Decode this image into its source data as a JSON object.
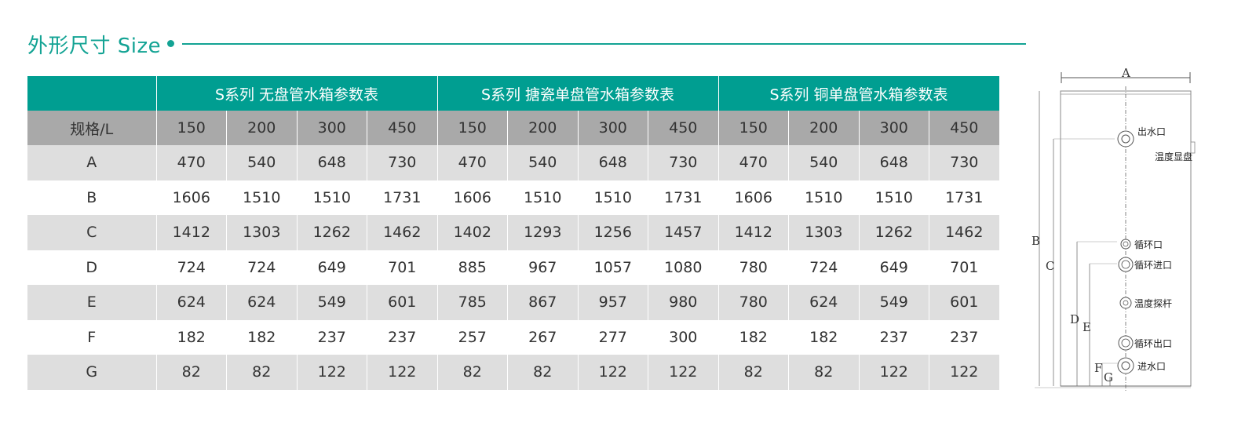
{
  "section": {
    "title": "外形尺寸 Size"
  },
  "table": {
    "series": [
      "S系列 无盘管水箱参数表",
      "S系列 搪瓷单盘管水箱参数表",
      "S系列 铜单盘管水箱参数表"
    ],
    "capacity_label": "规格/L",
    "capacities": [
      "150",
      "200",
      "300",
      "450",
      "150",
      "200",
      "300",
      "450",
      "150",
      "200",
      "300",
      "450"
    ],
    "rows": [
      {
        "label": "A",
        "values": [
          "470",
          "540",
          "648",
          "730",
          "470",
          "540",
          "648",
          "730",
          "470",
          "540",
          "648",
          "730"
        ]
      },
      {
        "label": "B",
        "values": [
          "1606",
          "1510",
          "1510",
          "1731",
          "1606",
          "1510",
          "1510",
          "1731",
          "1606",
          "1510",
          "1510",
          "1731"
        ]
      },
      {
        "label": "C",
        "values": [
          "1412",
          "1303",
          "1262",
          "1462",
          "1402",
          "1293",
          "1256",
          "1457",
          "1412",
          "1303",
          "1262",
          "1462"
        ]
      },
      {
        "label": "D",
        "values": [
          "724",
          "724",
          "649",
          "701",
          "885",
          "967",
          "1057",
          "1080",
          "780",
          "724",
          "649",
          "701"
        ]
      },
      {
        "label": "E",
        "values": [
          "624",
          "624",
          "549",
          "601",
          "785",
          "867",
          "957",
          "980",
          "780",
          "624",
          "549",
          "601"
        ]
      },
      {
        "label": "F",
        "values": [
          "182",
          "182",
          "237",
          "237",
          "257",
          "267",
          "277",
          "300",
          "182",
          "182",
          "237",
          "237"
        ]
      },
      {
        "label": "G",
        "values": [
          "82",
          "82",
          "122",
          "122",
          "82",
          "82",
          "122",
          "122",
          "82",
          "82",
          "122",
          "122"
        ]
      }
    ]
  },
  "diagram": {
    "dimension_letters": {
      "a": "A",
      "b": "B",
      "c": "C",
      "d": "D",
      "e": "E",
      "f": "F",
      "g": "G"
    },
    "ports": {
      "outlet": "出水口",
      "temp_display": "温度显盘",
      "circulation": "循环口",
      "circ_inlet": "循环进口",
      "temp_probe": "温度探杆",
      "circ_outlet": "循环出口",
      "inlet": "进水口"
    }
  }
}
